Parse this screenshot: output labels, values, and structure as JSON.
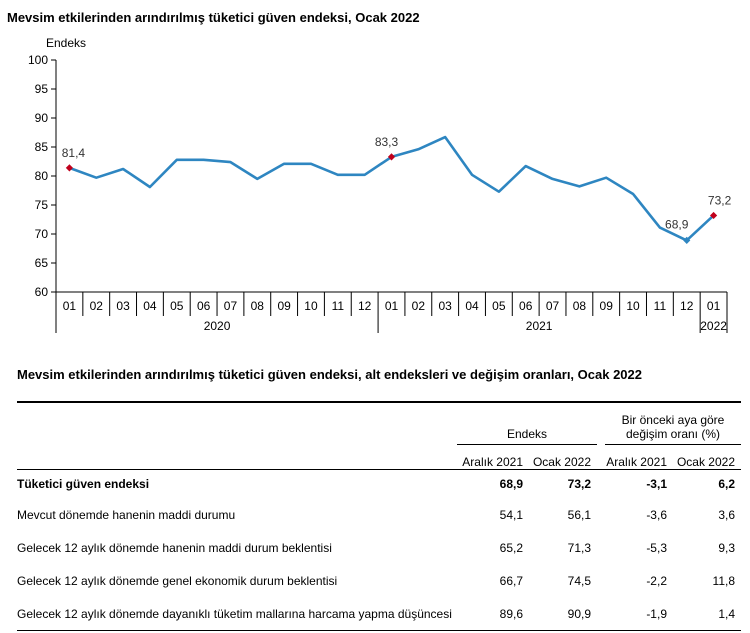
{
  "chart_title": "Mevsim etkilerinden arındırılmış tüketici güven endeksi, Ocak 2022",
  "chart_data": {
    "type": "line",
    "title": "Mevsim etkilerinden arındırılmış tüketici güven endeksi, Ocak 2022",
    "ylabel": "Endeks",
    "xlabel": "",
    "ylim": [
      60,
      100
    ],
    "yticks": [
      60,
      65,
      70,
      75,
      80,
      85,
      90,
      95,
      100
    ],
    "grid": false,
    "line_color": "#2e86c1",
    "marker_color": "#c0001c",
    "categories": [
      "01",
      "02",
      "03",
      "04",
      "05",
      "06",
      "07",
      "08",
      "09",
      "10",
      "11",
      "12",
      "01",
      "02",
      "03",
      "04",
      "05",
      "06",
      "07",
      "08",
      "09",
      "10",
      "11",
      "12",
      "01"
    ],
    "year_labels": [
      "2020",
      "2021",
      "2022"
    ],
    "values": [
      81.4,
      79.7,
      81.2,
      78.1,
      82.8,
      82.8,
      82.4,
      79.5,
      82.1,
      82.1,
      80.2,
      80.2,
      83.3,
      84.6,
      86.7,
      80.2,
      77.3,
      81.7,
      79.5,
      78.2,
      79.7,
      76.9,
      71.1,
      68.9,
      73.2
    ],
    "markers": [
      0,
      12,
      23,
      24
    ],
    "data_labels": [
      {
        "index": 0,
        "text": "81,4"
      },
      {
        "index": 12,
        "text": "83,3"
      },
      {
        "index": 23,
        "text": "68,9"
      },
      {
        "index": 24,
        "text": "73,2"
      }
    ]
  },
  "table": {
    "title": "Mevsim etkilerinden arındırılmış tüketici güven endeksi, alt endeksleri ve değişim oranları, Ocak 2022",
    "group1": "Endeks",
    "group2_line1": "Bir önceki aya göre",
    "group2_line2": "değişim oranı (%)",
    "sub_cols": [
      "Aralık 2021",
      "Ocak 2022",
      "Aralık 2021",
      "Ocak 2022"
    ],
    "rows": [
      {
        "label": "Tüketici güven endeksi",
        "v1": "68,9",
        "v2": "73,2",
        "v3": "-3,1",
        "v4": "6,2"
      },
      {
        "label": "Mevcut dönemde hanenin maddi durumu",
        "v1": "54,1",
        "v2": "56,1",
        "v3": "-3,6",
        "v4": "3,6"
      },
      {
        "label": "Gelecek 12 aylık dönemde hanenin maddi durum beklentisi",
        "v1": "65,2",
        "v2": "71,3",
        "v3": "-5,3",
        "v4": "9,3"
      },
      {
        "label": "Gelecek 12 aylık dönemde genel ekonomik durum beklentisi",
        "v1": "66,7",
        "v2": "74,5",
        "v3": "-2,2",
        "v4": "11,8"
      },
      {
        "label": "Gelecek 12 aylık dönemde dayanıklı tüketim mallarına harcama yapma düşüncesi",
        "v1": "89,6",
        "v2": "90,9",
        "v3": "-1,9",
        "v4": "1,4"
      }
    ]
  }
}
